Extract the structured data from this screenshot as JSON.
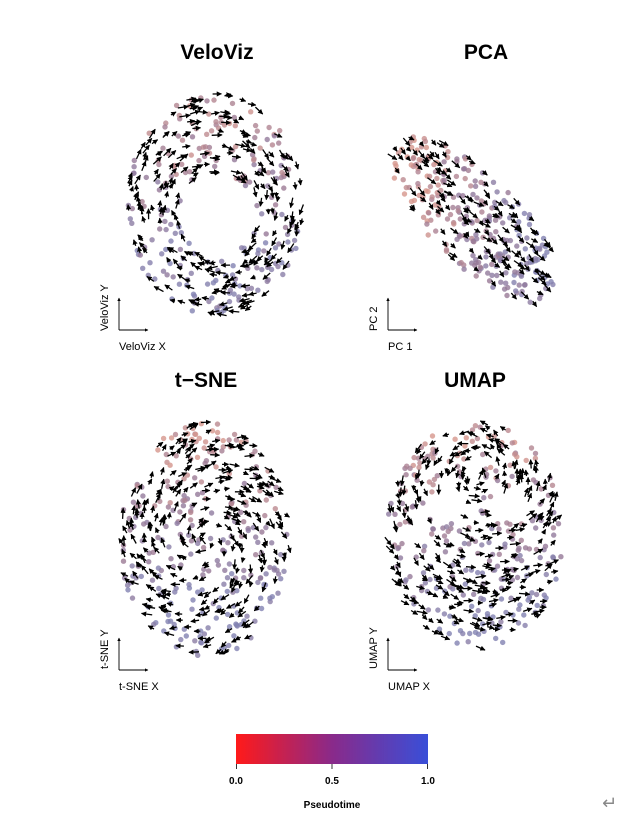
{
  "chart_data": [
    {
      "type": "scatter",
      "title": "VeloViz",
      "xlabel": "VeloViz X",
      "ylabel": "VeloViz Y",
      "shape": "ring",
      "n_points": 220,
      "n_arrows": 260,
      "seed": 11
    },
    {
      "type": "scatter",
      "title": "PCA",
      "xlabel": "PC 1",
      "ylabel": "PC 2",
      "shape": "wedge",
      "n_points": 260,
      "n_arrows": 140,
      "seed": 23
    },
    {
      "type": "scatter",
      "title": "t−SNE",
      "xlabel": "t-SNE X",
      "ylabel": "t-SNE Y",
      "shape": "blob",
      "n_points": 260,
      "n_arrows": 300,
      "seed": 37
    },
    {
      "type": "scatter",
      "title": "UMAP",
      "xlabel": "UMAP X",
      "ylabel": "UMAP Y",
      "shape": "head",
      "n_points": 260,
      "n_arrows": 300,
      "seed": 53
    }
  ],
  "colorbar": {
    "title": "Pseudotime",
    "range": [
      0,
      1
    ],
    "ticks": [
      "0.0",
      "0.5",
      "1.0"
    ],
    "colors": {
      "low": "#ff1a1a",
      "mid": "#8a2a8a",
      "high": "#3a4fd8"
    }
  },
  "icons": {
    "return": "return-arrow-icon"
  },
  "return_glyph": "↵"
}
